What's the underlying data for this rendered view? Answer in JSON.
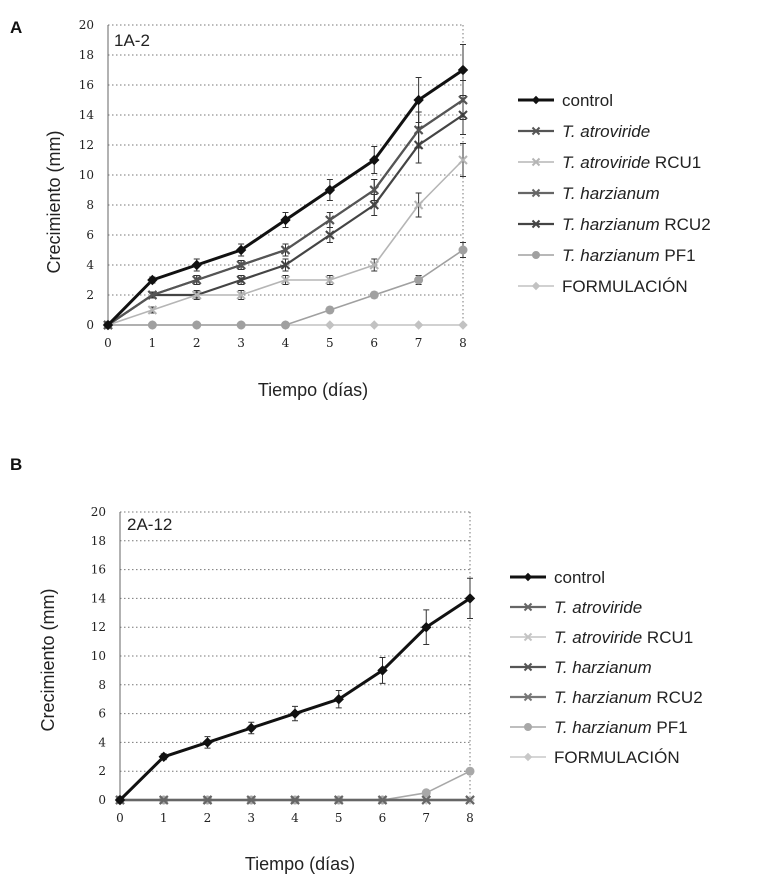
{
  "chart_data": [
    {
      "panel": "A",
      "title": "1A-2",
      "type": "line",
      "xlabel": "Tiempo (días)",
      "ylabel": "Crecimiento (mm)",
      "x": [
        0,
        1,
        2,
        3,
        4,
        5,
        6,
        7,
        8
      ],
      "xlim": [
        0,
        8
      ],
      "ylim": [
        0,
        20
      ],
      "yticks": [
        0,
        2,
        4,
        6,
        8,
        10,
        12,
        14,
        16,
        18,
        20
      ],
      "grid": "horizontal dotted",
      "legend_position": "right",
      "series": [
        {
          "name": "control",
          "italic": "",
          "plain": "control",
          "color": "#111111",
          "values": [
            0,
            3,
            4,
            5,
            7,
            9,
            11,
            15,
            17
          ],
          "errors": [
            0,
            0.2,
            0.4,
            0.4,
            0.5,
            0.7,
            0.9,
            1.5,
            1.7
          ]
        },
        {
          "name": "T. atroviride",
          "italic": "T. atroviride",
          "plain": "",
          "color": "#555555",
          "values": [
            0,
            2,
            3,
            4,
            5,
            7,
            9,
            13,
            15
          ],
          "errors": [
            0,
            0.2,
            0.3,
            0.3,
            0.4,
            0.5,
            0.7,
            1.2,
            1.3
          ]
        },
        {
          "name": "T. atroviride RCU1",
          "italic": "T. atroviride",
          "plain": " RCU1",
          "color": "#b5b5b5",
          "values": [
            0,
            1,
            2,
            2,
            3,
            3,
            4,
            8,
            11
          ],
          "errors": [
            0,
            0.2,
            0.2,
            0.3,
            0.3,
            0.3,
            0.4,
            0.8,
            1.1
          ]
        },
        {
          "name": "T. harzianum",
          "italic": "T. harzianum",
          "plain": "",
          "color": "#666666",
          "values": [
            0,
            2,
            3,
            4,
            5,
            7,
            9,
            13,
            15
          ],
          "errors": [
            0,
            0.2,
            0.3,
            0.3,
            0.4,
            0.5,
            0.7,
            1.2,
            1.3
          ]
        },
        {
          "name": "T. harzianum RCU2",
          "italic": "T. harzianum",
          "plain": " RCU2",
          "color": "#444444",
          "values": [
            0,
            2,
            2,
            3,
            4,
            6,
            8,
            12,
            14
          ],
          "errors": [
            0,
            0.2,
            0.3,
            0.3,
            0.4,
            0.5,
            0.7,
            1.2,
            1.3
          ]
        },
        {
          "name": "T. harzianum PF1",
          "italic": "T. harzianum",
          "plain": " PF1",
          "color": "#a0a0a0",
          "values": [
            0,
            0,
            0,
            0,
            0,
            1,
            2,
            3,
            5
          ],
          "errors": [
            0,
            0,
            0,
            0,
            0,
            0.2,
            0.2,
            0.3,
            0.5
          ]
        },
        {
          "name": "FORMULACIÓN",
          "italic": "",
          "plain": "FORMULACIÓN",
          "color": "#c2c2c2",
          "values": [
            0,
            0,
            0,
            0,
            0,
            0,
            0,
            0,
            0
          ],
          "errors": [
            0,
            0,
            0,
            0,
            0,
            0,
            0,
            0,
            0
          ]
        }
      ]
    },
    {
      "panel": "B",
      "title": "2A-12",
      "type": "line",
      "xlabel": "Tiempo (días)",
      "ylabel": "Crecimiento (mm)",
      "x": [
        0,
        1,
        2,
        3,
        4,
        5,
        6,
        7,
        8
      ],
      "xlim": [
        0,
        8
      ],
      "ylim": [
        0,
        20
      ],
      "yticks": [
        0,
        2,
        4,
        6,
        8,
        10,
        12,
        14,
        16,
        18,
        20
      ],
      "grid": "horizontal dotted",
      "legend_position": "right",
      "series": [
        {
          "name": "control",
          "italic": "",
          "plain": "control",
          "color": "#111111",
          "values": [
            0,
            3,
            4,
            5,
            6,
            7,
            9,
            12,
            14
          ],
          "errors": [
            0,
            0.2,
            0.4,
            0.4,
            0.5,
            0.6,
            0.9,
            1.2,
            1.4
          ]
        },
        {
          "name": "T. atroviride",
          "italic": "T. atroviride",
          "plain": "",
          "color": "#666666",
          "values": [
            0,
            0,
            0,
            0,
            0,
            0,
            0,
            0,
            0
          ],
          "errors": [
            0,
            0,
            0,
            0,
            0,
            0,
            0,
            0,
            0
          ]
        },
        {
          "name": "T. atroviride RCU1",
          "italic": "T. atroviride",
          "plain": " RCU1",
          "color": "#c4c4c4",
          "values": [
            0,
            0,
            0,
            0,
            0,
            0,
            0,
            0,
            0
          ],
          "errors": [
            0,
            0,
            0,
            0,
            0,
            0,
            0,
            0,
            0
          ]
        },
        {
          "name": "T. harzianum",
          "italic": "T. harzianum",
          "plain": "",
          "color": "#555555",
          "values": [
            0,
            0,
            0,
            0,
            0,
            0,
            0,
            0,
            0
          ],
          "errors": [
            0,
            0,
            0,
            0,
            0,
            0,
            0,
            0,
            0
          ]
        },
        {
          "name": "T. harzianum RCU2",
          "italic": "T. harzianum",
          "plain": " RCU2",
          "color": "#777777",
          "values": [
            0,
            0,
            0,
            0,
            0,
            0,
            0,
            0,
            0
          ],
          "errors": [
            0,
            0,
            0,
            0,
            0,
            0,
            0,
            0,
            0
          ]
        },
        {
          "name": "T. harzianum PF1",
          "italic": "T. harzianum",
          "plain": " PF1",
          "color": "#a8a8a8",
          "values": [
            0,
            0,
            0,
            0,
            0,
            0,
            0,
            0.5,
            2
          ],
          "errors": [
            0,
            0,
            0,
            0,
            0,
            0,
            0,
            0.1,
            0.2
          ]
        },
        {
          "name": "FORMULACIÓN",
          "italic": "",
          "plain": "FORMULACIÓN",
          "color": "#c8c8c8",
          "values": [
            0,
            0,
            0,
            0,
            0,
            0,
            0,
            0,
            0
          ],
          "errors": [
            0,
            0,
            0,
            0,
            0,
            0,
            0,
            0,
            0
          ]
        }
      ]
    }
  ]
}
